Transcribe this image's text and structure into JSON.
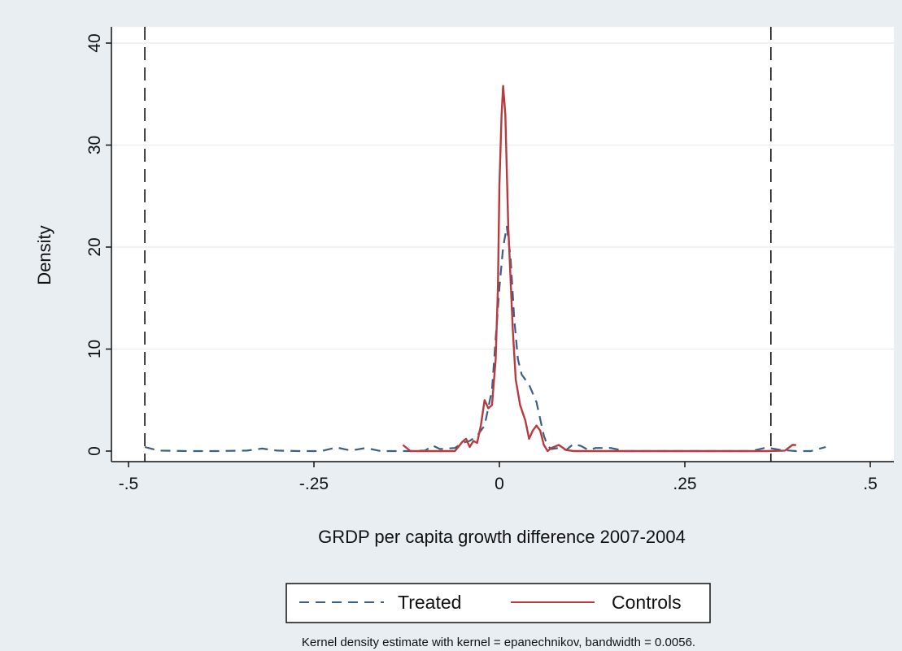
{
  "chart_data": {
    "type": "line",
    "xlabel": "GRDP per capita growth difference 2007-2004",
    "ylabel": "Density",
    "xlim": [
      -0.5,
      0.5
    ],
    "ylim": [
      0,
      40
    ],
    "x_ticks": [
      -0.5,
      -0.25,
      0,
      0.25,
      0.5
    ],
    "x_tick_labels": [
      "-.5",
      "-.25",
      "0",
      ".25",
      ".5"
    ],
    "y_ticks": [
      0,
      10,
      20,
      30,
      40
    ],
    "y_tick_labels": [
      "0",
      "10",
      "20",
      "30",
      "40"
    ],
    "grid": "horizontal",
    "legend_position": "bottom",
    "vlines": [
      -0.478,
      0.366
    ],
    "note": "Kernel density estimate with kernel = epanechnikov, bandwidth = 0.0056.",
    "series": [
      {
        "name": "Treated",
        "color": "#3b5f82",
        "dash": "dashed",
        "points": [
          [
            -0.478,
            0.4
          ],
          [
            -0.46,
            0.05
          ],
          [
            -0.42,
            0.0
          ],
          [
            -0.38,
            0.0
          ],
          [
            -0.34,
            0.05
          ],
          [
            -0.32,
            0.25
          ],
          [
            -0.3,
            0.05
          ],
          [
            -0.27,
            0.0
          ],
          [
            -0.24,
            0.0
          ],
          [
            -0.22,
            0.35
          ],
          [
            -0.2,
            0.05
          ],
          [
            -0.18,
            0.3
          ],
          [
            -0.16,
            0.0
          ],
          [
            -0.12,
            0.0
          ],
          [
            -0.1,
            0.05
          ],
          [
            -0.09,
            0.55
          ],
          [
            -0.08,
            0.2
          ],
          [
            -0.06,
            0.3
          ],
          [
            -0.05,
            0.8
          ],
          [
            -0.04,
            1.0
          ],
          [
            -0.03,
            1.5
          ],
          [
            -0.02,
            2.5
          ],
          [
            -0.01,
            6.0
          ],
          [
            -0.005,
            11.0
          ],
          [
            0.0,
            16.0
          ],
          [
            0.005,
            20.0
          ],
          [
            0.01,
            22.0
          ],
          [
            0.015,
            19.0
          ],
          [
            0.02,
            13.0
          ],
          [
            0.025,
            9.0
          ],
          [
            0.03,
            7.5
          ],
          [
            0.04,
            6.5
          ],
          [
            0.05,
            4.8
          ],
          [
            0.06,
            1.5
          ],
          [
            0.065,
            0.5
          ],
          [
            0.07,
            0.2
          ],
          [
            0.08,
            0.3
          ],
          [
            0.09,
            0.1
          ],
          [
            0.1,
            0.7
          ],
          [
            0.11,
            0.5
          ],
          [
            0.12,
            0.1
          ],
          [
            0.13,
            0.3
          ],
          [
            0.15,
            0.3
          ],
          [
            0.17,
            0.0
          ],
          [
            0.2,
            0.0
          ],
          [
            0.25,
            0.0
          ],
          [
            0.3,
            0.0
          ],
          [
            0.34,
            0.0
          ],
          [
            0.36,
            0.35
          ],
          [
            0.38,
            0.1
          ],
          [
            0.4,
            0.0
          ],
          [
            0.42,
            0.0
          ],
          [
            0.44,
            0.4
          ]
        ]
      },
      {
        "name": "Controls",
        "color": "#b73a3f",
        "dash": "solid",
        "points": [
          [
            -0.13,
            0.6
          ],
          [
            -0.12,
            0.0
          ],
          [
            -0.08,
            0.0
          ],
          [
            -0.06,
            0.0
          ],
          [
            -0.05,
            0.9
          ],
          [
            -0.045,
            1.2
          ],
          [
            -0.04,
            0.4
          ],
          [
            -0.035,
            1.0
          ],
          [
            -0.03,
            0.8
          ],
          [
            -0.025,
            2.5
          ],
          [
            -0.02,
            5.0
          ],
          [
            -0.015,
            4.2
          ],
          [
            -0.01,
            4.5
          ],
          [
            -0.005,
            9.0
          ],
          [
            -0.002,
            16.0
          ],
          [
            0.0,
            26.0
          ],
          [
            0.003,
            33.0
          ],
          [
            0.005,
            35.8
          ],
          [
            0.008,
            33.0
          ],
          [
            0.012,
            22.0
          ],
          [
            0.018,
            12.0
          ],
          [
            0.022,
            7.0
          ],
          [
            0.028,
            4.5
          ],
          [
            0.035,
            3.0
          ],
          [
            0.04,
            1.2
          ],
          [
            0.045,
            2.0
          ],
          [
            0.05,
            2.5
          ],
          [
            0.055,
            2.0
          ],
          [
            0.06,
            0.6
          ],
          [
            0.065,
            0.0
          ],
          [
            0.07,
            0.3
          ],
          [
            0.08,
            0.6
          ],
          [
            0.09,
            0.1
          ],
          [
            0.1,
            0.0
          ],
          [
            0.2,
            0.0
          ],
          [
            0.3,
            0.0
          ],
          [
            0.36,
            0.0
          ],
          [
            0.385,
            0.05
          ],
          [
            0.395,
            0.6
          ],
          [
            0.4,
            0.6
          ]
        ]
      }
    ]
  }
}
